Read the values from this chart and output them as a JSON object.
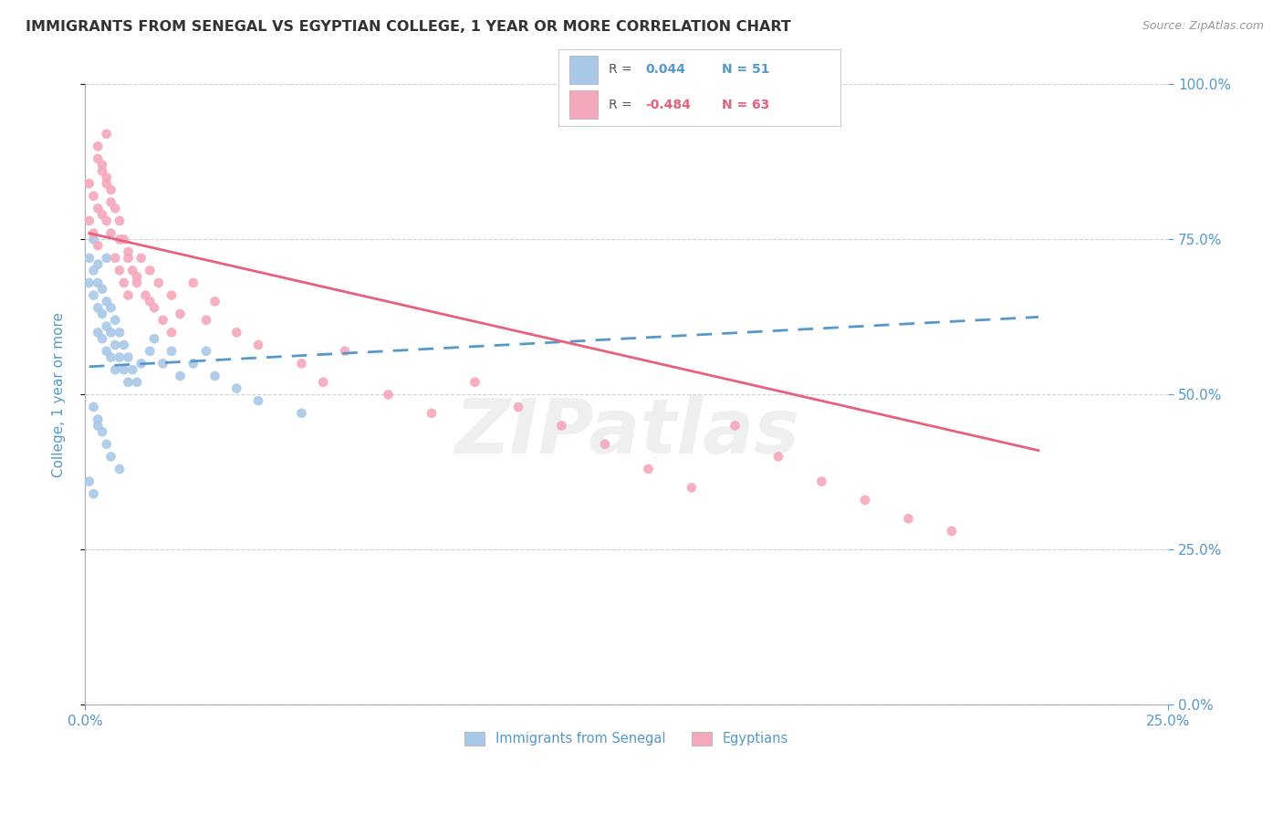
{
  "title": "IMMIGRANTS FROM SENEGAL VS EGYPTIAN COLLEGE, 1 YEAR OR MORE CORRELATION CHART",
  "source_text": "Source: ZipAtlas.com",
  "ylabel": "College, 1 year or more",
  "xlim": [
    0.0,
    0.25
  ],
  "ylim": [
    0.0,
    1.0
  ],
  "legend_r1": "R =  0.044",
  "legend_n1": "N = 51",
  "legend_r2": "R = -0.484",
  "legend_n2": "N = 63",
  "blue_color": "#A8C8E8",
  "pink_color": "#F4A8BC",
  "blue_line_color": "#5599CC",
  "pink_line_color": "#E8607A",
  "tick_color": "#5599CC",
  "grid_color": "#CCCCCC",
  "watermark_color": "#DDDDDD",
  "senegal_x": [
    0.001,
    0.001,
    0.002,
    0.002,
    0.002,
    0.003,
    0.003,
    0.003,
    0.003,
    0.004,
    0.004,
    0.004,
    0.005,
    0.005,
    0.005,
    0.005,
    0.006,
    0.006,
    0.006,
    0.007,
    0.007,
    0.007,
    0.008,
    0.008,
    0.009,
    0.009,
    0.01,
    0.01,
    0.011,
    0.012,
    0.013,
    0.015,
    0.016,
    0.018,
    0.02,
    0.022,
    0.025,
    0.028,
    0.03,
    0.035,
    0.04,
    0.05,
    0.002,
    0.003,
    0.004,
    0.005,
    0.006,
    0.008,
    0.001,
    0.002,
    0.003
  ],
  "senegal_y": [
    0.68,
    0.72,
    0.75,
    0.7,
    0.66,
    0.71,
    0.68,
    0.64,
    0.6,
    0.67,
    0.63,
    0.59,
    0.65,
    0.61,
    0.57,
    0.72,
    0.64,
    0.6,
    0.56,
    0.62,
    0.58,
    0.54,
    0.6,
    0.56,
    0.58,
    0.54,
    0.56,
    0.52,
    0.54,
    0.52,
    0.55,
    0.57,
    0.59,
    0.55,
    0.57,
    0.53,
    0.55,
    0.57,
    0.53,
    0.51,
    0.49,
    0.47,
    0.48,
    0.46,
    0.44,
    0.42,
    0.4,
    0.38,
    0.36,
    0.34,
    0.45
  ],
  "egypt_x": [
    0.001,
    0.001,
    0.002,
    0.002,
    0.003,
    0.003,
    0.003,
    0.004,
    0.004,
    0.005,
    0.005,
    0.005,
    0.006,
    0.006,
    0.007,
    0.007,
    0.008,
    0.008,
    0.009,
    0.009,
    0.01,
    0.01,
    0.011,
    0.012,
    0.013,
    0.014,
    0.015,
    0.016,
    0.017,
    0.018,
    0.02,
    0.022,
    0.025,
    0.028,
    0.03,
    0.035,
    0.04,
    0.05,
    0.055,
    0.06,
    0.07,
    0.08,
    0.09,
    0.1,
    0.11,
    0.12,
    0.13,
    0.14,
    0.15,
    0.16,
    0.17,
    0.18,
    0.19,
    0.2,
    0.003,
    0.004,
    0.005,
    0.006,
    0.008,
    0.01,
    0.012,
    0.015,
    0.02
  ],
  "egypt_y": [
    0.78,
    0.84,
    0.82,
    0.76,
    0.88,
    0.8,
    0.74,
    0.86,
    0.79,
    0.92,
    0.85,
    0.78,
    0.83,
    0.76,
    0.8,
    0.72,
    0.78,
    0.7,
    0.75,
    0.68,
    0.73,
    0.66,
    0.7,
    0.68,
    0.72,
    0.66,
    0.7,
    0.64,
    0.68,
    0.62,
    0.66,
    0.63,
    0.68,
    0.62,
    0.65,
    0.6,
    0.58,
    0.55,
    0.52,
    0.57,
    0.5,
    0.47,
    0.52,
    0.48,
    0.45,
    0.42,
    0.38,
    0.35,
    0.45,
    0.4,
    0.36,
    0.33,
    0.3,
    0.28,
    0.9,
    0.87,
    0.84,
    0.81,
    0.75,
    0.72,
    0.69,
    0.65,
    0.6
  ],
  "blue_line_x": [
    0.001,
    0.22
  ],
  "blue_line_y": [
    0.545,
    0.625
  ],
  "pink_line_x": [
    0.001,
    0.22
  ],
  "pink_line_y": [
    0.76,
    0.41
  ]
}
